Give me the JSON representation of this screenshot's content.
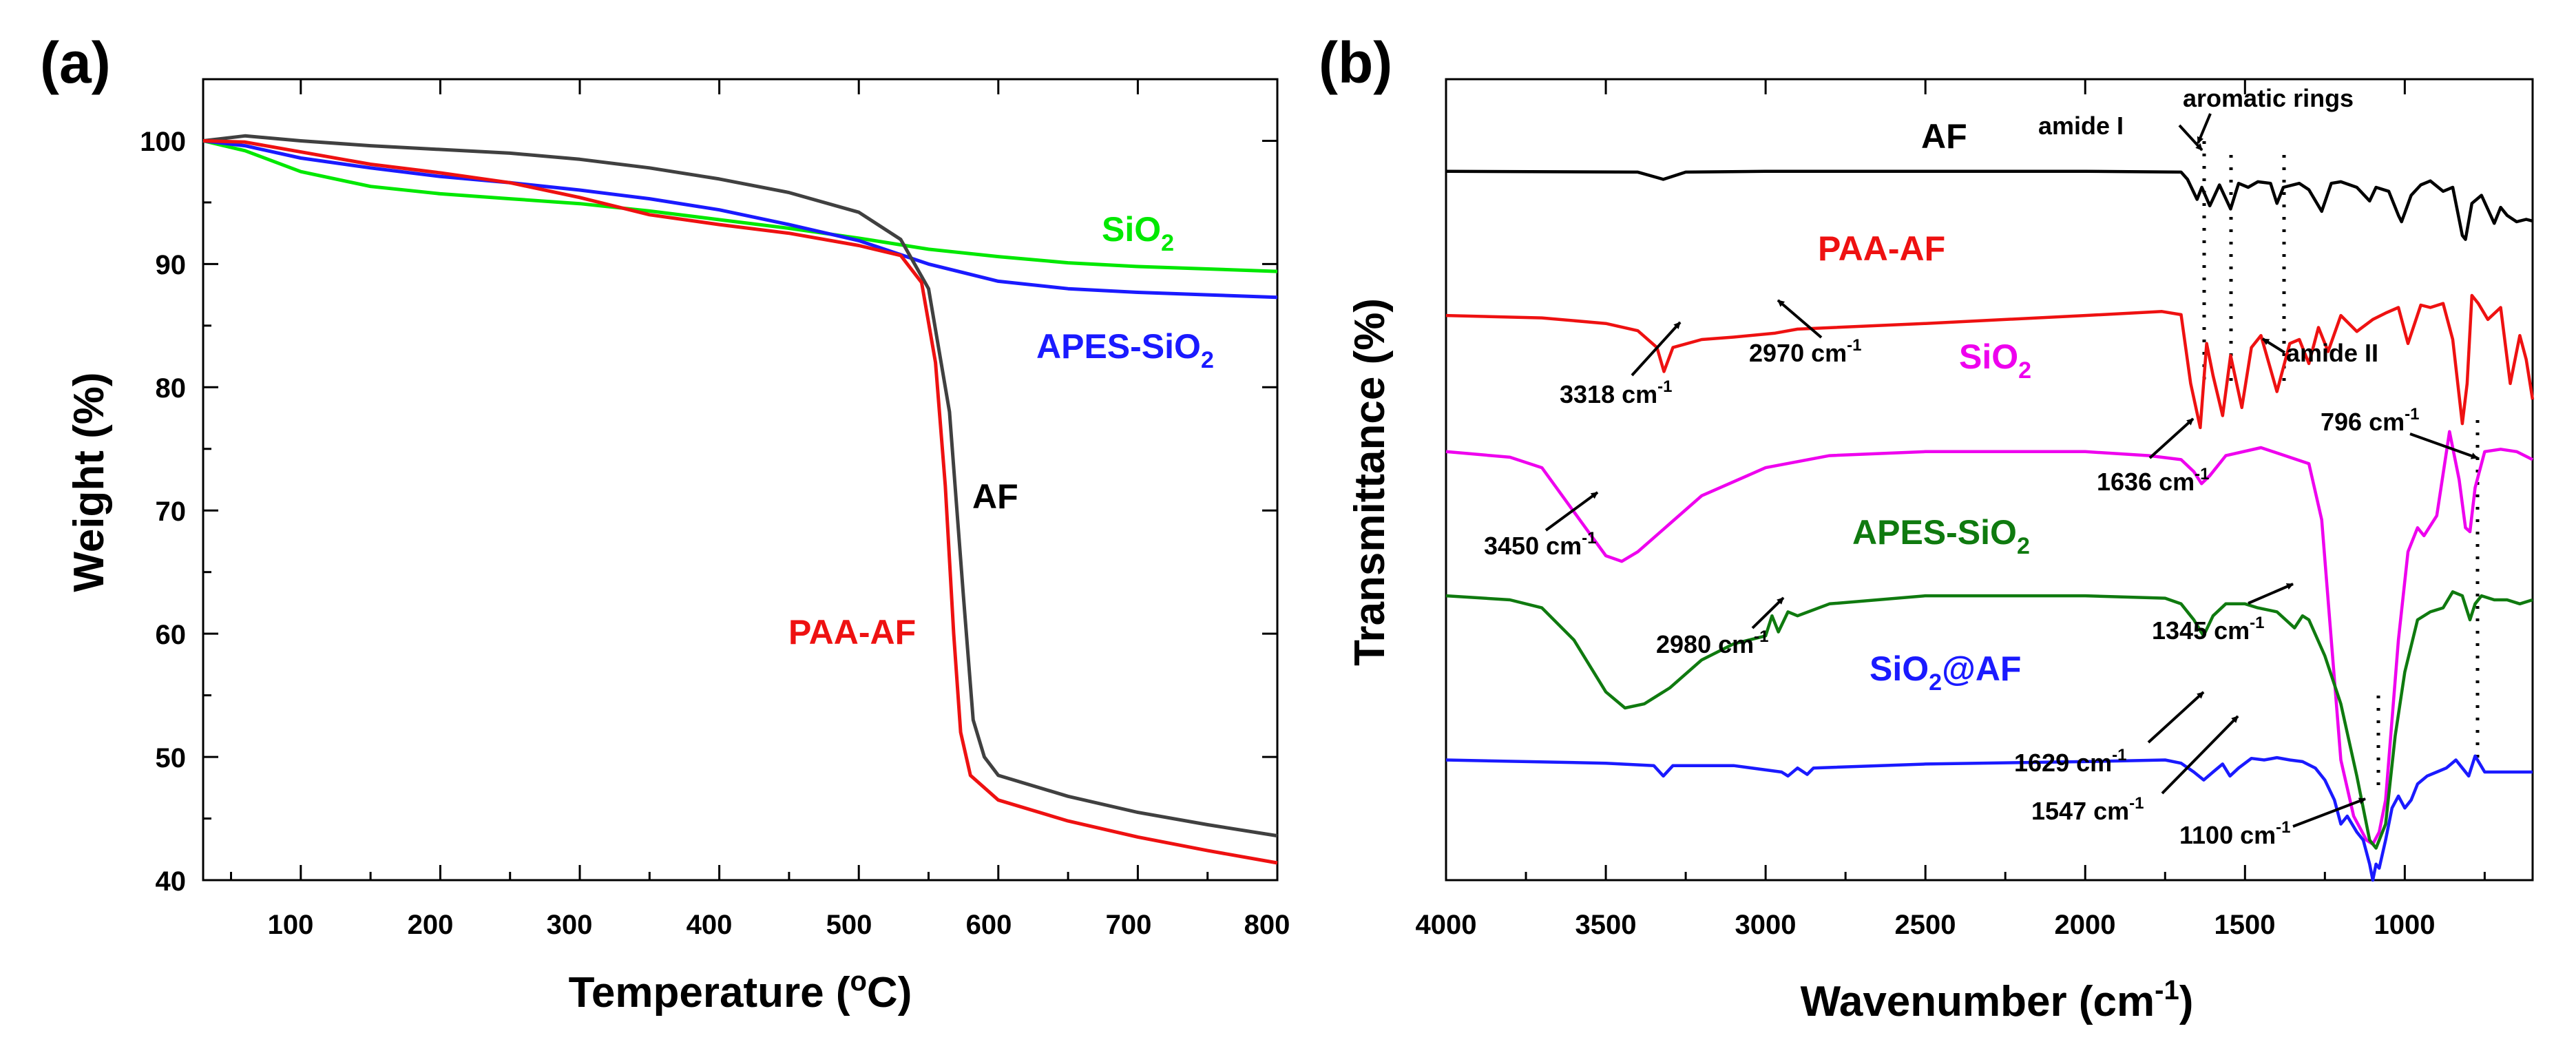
{
  "chart_data": [
    {
      "panel_label": "(a)",
      "type": "line",
      "xlabel": "Temperature (",
      "xlabel_degree": "o",
      "xlabel_unit": "C)",
      "ylabel": "Weight (%)",
      "xlim": [
        30,
        800
      ],
      "ylim": [
        40,
        105
      ],
      "x_ticks": [
        "100",
        "200",
        "300",
        "400",
        "500",
        "600",
        "700",
        "800"
      ],
      "y_ticks": [
        "40",
        "50",
        "60",
        "70",
        "80",
        "90",
        "100"
      ],
      "grid": false,
      "series": [
        {
          "name": "SiO2",
          "label": "SiO",
          "label_sub": "2",
          "color": "#00e800",
          "x": [
            30,
            60,
            100,
            150,
            200,
            250,
            300,
            350,
            400,
            450,
            500,
            550,
            600,
            650,
            700,
            750,
            800
          ],
          "y": [
            100,
            99.2,
            97.5,
            96.3,
            95.7,
            95.3,
            94.9,
            94.3,
            93.6,
            92.9,
            92.1,
            91.2,
            90.6,
            90.1,
            89.8,
            89.6,
            89.4
          ]
        },
        {
          "name": "APES-SiO2",
          "label": "APES-SiO",
          "label_sub": "2",
          "color": "#1a1aff",
          "x": [
            30,
            60,
            100,
            150,
            200,
            250,
            300,
            350,
            400,
            450,
            500,
            550,
            600,
            650,
            700,
            750,
            800
          ],
          "y": [
            100,
            99.6,
            98.6,
            97.8,
            97.1,
            96.6,
            96.0,
            95.3,
            94.4,
            93.2,
            91.9,
            90.0,
            88.6,
            88.0,
            87.7,
            87.5,
            87.3
          ]
        },
        {
          "name": "AF",
          "label": "AF",
          "label_sub": "",
          "color": "#404040",
          "x": [
            30,
            60,
            100,
            150,
            200,
            250,
            300,
            350,
            400,
            450,
            500,
            530,
            550,
            565,
            575,
            582,
            590,
            600,
            650,
            700,
            750,
            800
          ],
          "y": [
            100,
            100.4,
            100,
            99.6,
            99.3,
            99.0,
            98.5,
            97.8,
            96.9,
            95.8,
            94.2,
            92.0,
            88.0,
            78.0,
            63.0,
            53.0,
            50.0,
            48.5,
            46.8,
            45.5,
            44.5,
            43.6
          ]
        },
        {
          "name": "PAA-AF",
          "label": "PAA-AF",
          "label_sub": "",
          "color": "#ee1111",
          "x": [
            30,
            60,
            100,
            150,
            200,
            250,
            300,
            350,
            400,
            450,
            500,
            530,
            545,
            555,
            562,
            568,
            573,
            580,
            600,
            650,
            700,
            750,
            800
          ],
          "y": [
            100,
            99.9,
            99.1,
            98.1,
            97.4,
            96.6,
            95.4,
            94.0,
            93.2,
            92.5,
            91.5,
            90.7,
            88.5,
            82.0,
            72.0,
            60.0,
            52.0,
            48.5,
            46.5,
            44.8,
            43.5,
            42.4,
            41.4
          ]
        }
      ]
    },
    {
      "panel_label": "(b)",
      "type": "line",
      "xlabel": "Wavenumber (cm",
      "xlabel_sup": "-1",
      "xlabel_end": ")",
      "ylabel": "Transmittance (%)",
      "xlim": [
        4000,
        600
      ],
      "x_ticks": [
        "4000",
        "3500",
        "3000",
        "2500",
        "2000",
        "1500",
        "1000"
      ],
      "y_ticks": [],
      "y_units": "arbitrary, stacked offset traces (0 = bottom of frame, 100 = top)",
      "grid": false,
      "series": [
        {
          "name": "AF",
          "label": "AF",
          "label_sub": "",
          "color": "#000000",
          "x": [
            4000,
            3400,
            3320,
            3250,
            3000,
            2500,
            2000,
            1700,
            1680,
            1650,
            1635,
            1610,
            1580,
            1545,
            1520,
            1490,
            1460,
            1420,
            1400,
            1380,
            1330,
            1300,
            1260,
            1230,
            1200,
            1150,
            1110,
            1090,
            1050,
            1020,
            1010,
            980,
            950,
            920,
            880,
            850,
            820,
            810,
            790,
            760,
            720,
            700,
            680,
            650,
            620,
            600
          ],
          "y": [
            88.5,
            88.4,
            87.5,
            88.4,
            88.5,
            88.5,
            88.5,
            88.4,
            87.5,
            85.0,
            86.5,
            84.2,
            86.8,
            83.8,
            87.0,
            86.5,
            87.2,
            87.0,
            84.5,
            86.5,
            87.0,
            86.2,
            83.5,
            87.0,
            87.2,
            86.5,
            84.8,
            86.5,
            86.0,
            83.0,
            82.2,
            85.5,
            86.8,
            87.3,
            86.0,
            86.5,
            80.5,
            80.0,
            84.5,
            85.5,
            82.0,
            84.0,
            83.0,
            82.2,
            82.5,
            82.3
          ]
        },
        {
          "name": "PAA-AF",
          "label": "PAA-AF",
          "label_sub": "",
          "color": "#ee1111",
          "x": [
            4000,
            3700,
            3500,
            3400,
            3340,
            3318,
            3290,
            3200,
            3100,
            2970,
            2900,
            2500,
            2000,
            1760,
            1700,
            1670,
            1640,
            1620,
            1600,
            1570,
            1545,
            1510,
            1480,
            1450,
            1400,
            1360,
            1330,
            1300,
            1270,
            1240,
            1200,
            1150,
            1100,
            1060,
            1020,
            990,
            950,
            920,
            880,
            850,
            820,
            805,
            790,
            770,
            740,
            700,
            670,
            640,
            620,
            600
          ],
          "y": [
            70.5,
            70.2,
            69.5,
            68.6,
            66.5,
            63.5,
            66.5,
            67.5,
            67.8,
            68.3,
            68.8,
            69.5,
            70.5,
            71.0,
            70.6,
            62.0,
            56.5,
            67.0,
            63.0,
            58.0,
            65.5,
            59.0,
            66.5,
            68.0,
            61.0,
            67.0,
            67.5,
            64.5,
            69.0,
            66.0,
            70.5,
            68.5,
            70.0,
            70.8,
            71.5,
            67.0,
            71.8,
            71.5,
            72.0,
            67.5,
            57.0,
            62.0,
            73.0,
            72.0,
            70.0,
            71.5,
            62.0,
            68.0,
            65.0,
            60.0
          ]
        },
        {
          "name": "SiO2",
          "label": "SiO",
          "label_sub": "2",
          "color": "#ee00ee",
          "x": [
            4000,
            3800,
            3700,
            3600,
            3500,
            3450,
            3400,
            3300,
            3200,
            3000,
            2800,
            2500,
            2000,
            1800,
            1700,
            1660,
            1636,
            1610,
            1560,
            1450,
            1300,
            1260,
            1230,
            1200,
            1160,
            1120,
            1100,
            1080,
            1060,
            1020,
            990,
            960,
            940,
            900,
            860,
            830,
            810,
            796,
            780,
            750,
            700,
            650,
            600
          ],
          "y": [
            53.5,
            52.8,
            51.5,
            46.0,
            40.5,
            39.8,
            41.0,
            44.5,
            48.0,
            51.5,
            53.0,
            53.5,
            53.5,
            53.0,
            52.5,
            51.0,
            49.5,
            50.5,
            53.0,
            54.0,
            52.0,
            45.0,
            30.0,
            15.0,
            8.0,
            5.0,
            4.5,
            6.0,
            10.0,
            30.0,
            41.0,
            44.0,
            43.0,
            45.5,
            56.0,
            50.0,
            44.0,
            43.5,
            49.0,
            53.5,
            53.8,
            53.5,
            52.5
          ]
        },
        {
          "name": "APES-SiO2",
          "label": "APES-SiO",
          "label_sub": "2",
          "color": "#0f7a0f",
          "x": [
            4000,
            3800,
            3700,
            3600,
            3500,
            3440,
            3380,
            3300,
            3200,
            3100,
            3000,
            2980,
            2960,
            2930,
            2900,
            2800,
            2500,
            2000,
            1750,
            1700,
            1660,
            1630,
            1600,
            1560,
            1500,
            1460,
            1400,
            1345,
            1320,
            1300,
            1250,
            1200,
            1150,
            1110,
            1090,
            1060,
            1030,
            1000,
            960,
            920,
            880,
            850,
            820,
            796,
            780,
            760,
            720,
            680,
            640,
            600
          ],
          "y": [
            35.5,
            35.0,
            34.0,
            30.0,
            23.5,
            21.5,
            22.0,
            24.0,
            27.5,
            29.5,
            30.5,
            33.0,
            31.0,
            33.5,
            33.0,
            34.5,
            35.5,
            35.5,
            35.2,
            34.5,
            32.5,
            30.5,
            33.0,
            34.5,
            34.5,
            34.0,
            33.5,
            31.5,
            33.0,
            32.5,
            28.0,
            22.0,
            13.0,
            5.0,
            4.0,
            7.0,
            18.0,
            26.0,
            32.5,
            33.5,
            34.0,
            36.0,
            35.5,
            32.5,
            34.5,
            35.5,
            35.0,
            35.0,
            34.5,
            35.0
          ]
        },
        {
          "name": "SiO2@AF",
          "label": "SiO",
          "label_sub": "2",
          "label_end": "@AF",
          "color": "#1a1aff",
          "x": [
            4000,
            3500,
            3350,
            3320,
            3290,
            3100,
            2950,
            2930,
            2900,
            2870,
            2850,
            2500,
            2000,
            1750,
            1700,
            1660,
            1629,
            1600,
            1570,
            1547,
            1520,
            1480,
            1440,
            1400,
            1360,
            1320,
            1280,
            1250,
            1220,
            1200,
            1180,
            1150,
            1130,
            1110,
            1100,
            1090,
            1080,
            1060,
            1040,
            1020,
            1000,
            980,
            960,
            930,
            900,
            870,
            840,
            820,
            800,
            780,
            750,
            700,
            650,
            600
          ],
          "y": [
            15.0,
            14.6,
            14.3,
            13.0,
            14.3,
            14.3,
            13.5,
            13.0,
            14.0,
            13.2,
            14.0,
            14.5,
            14.8,
            15.0,
            14.6,
            13.5,
            12.5,
            13.5,
            14.5,
            13.0,
            14.0,
            15.2,
            15.0,
            15.3,
            15.0,
            14.8,
            14.0,
            12.5,
            10.0,
            7.0,
            8.0,
            6.0,
            5.0,
            2.0,
            0.0,
            2.0,
            1.5,
            5.0,
            9.0,
            10.5,
            9.0,
            10.0,
            12.0,
            13.0,
            13.5,
            14.0,
            15.0,
            14.0,
            13.0,
            15.5,
            13.5,
            13.5,
            13.5,
            13.5
          ]
        }
      ],
      "annotations": [
        {
          "text": "amide I",
          "sup": ""
        },
        {
          "text": "aromatic rings",
          "sup": ""
        },
        {
          "text": "amide II",
          "sup": ""
        },
        {
          "text": "3318 cm",
          "sup": "-1"
        },
        {
          "text": "2970 cm",
          "sup": "-1"
        },
        {
          "text": "3450 cm",
          "sup": "-1"
        },
        {
          "text": "1636 cm",
          "sup": "-1"
        },
        {
          "text": "796 cm",
          "sup": "-1"
        },
        {
          "text": "2980 cm",
          "sup": "-1"
        },
        {
          "text": "1345 cm",
          "sup": "-1"
        },
        {
          "text": "1629 cm",
          "sup": "-1"
        },
        {
          "text": "1547 cm",
          "sup": "-1"
        },
        {
          "text": "1100 cm",
          "sup": "-1"
        }
      ]
    }
  ]
}
